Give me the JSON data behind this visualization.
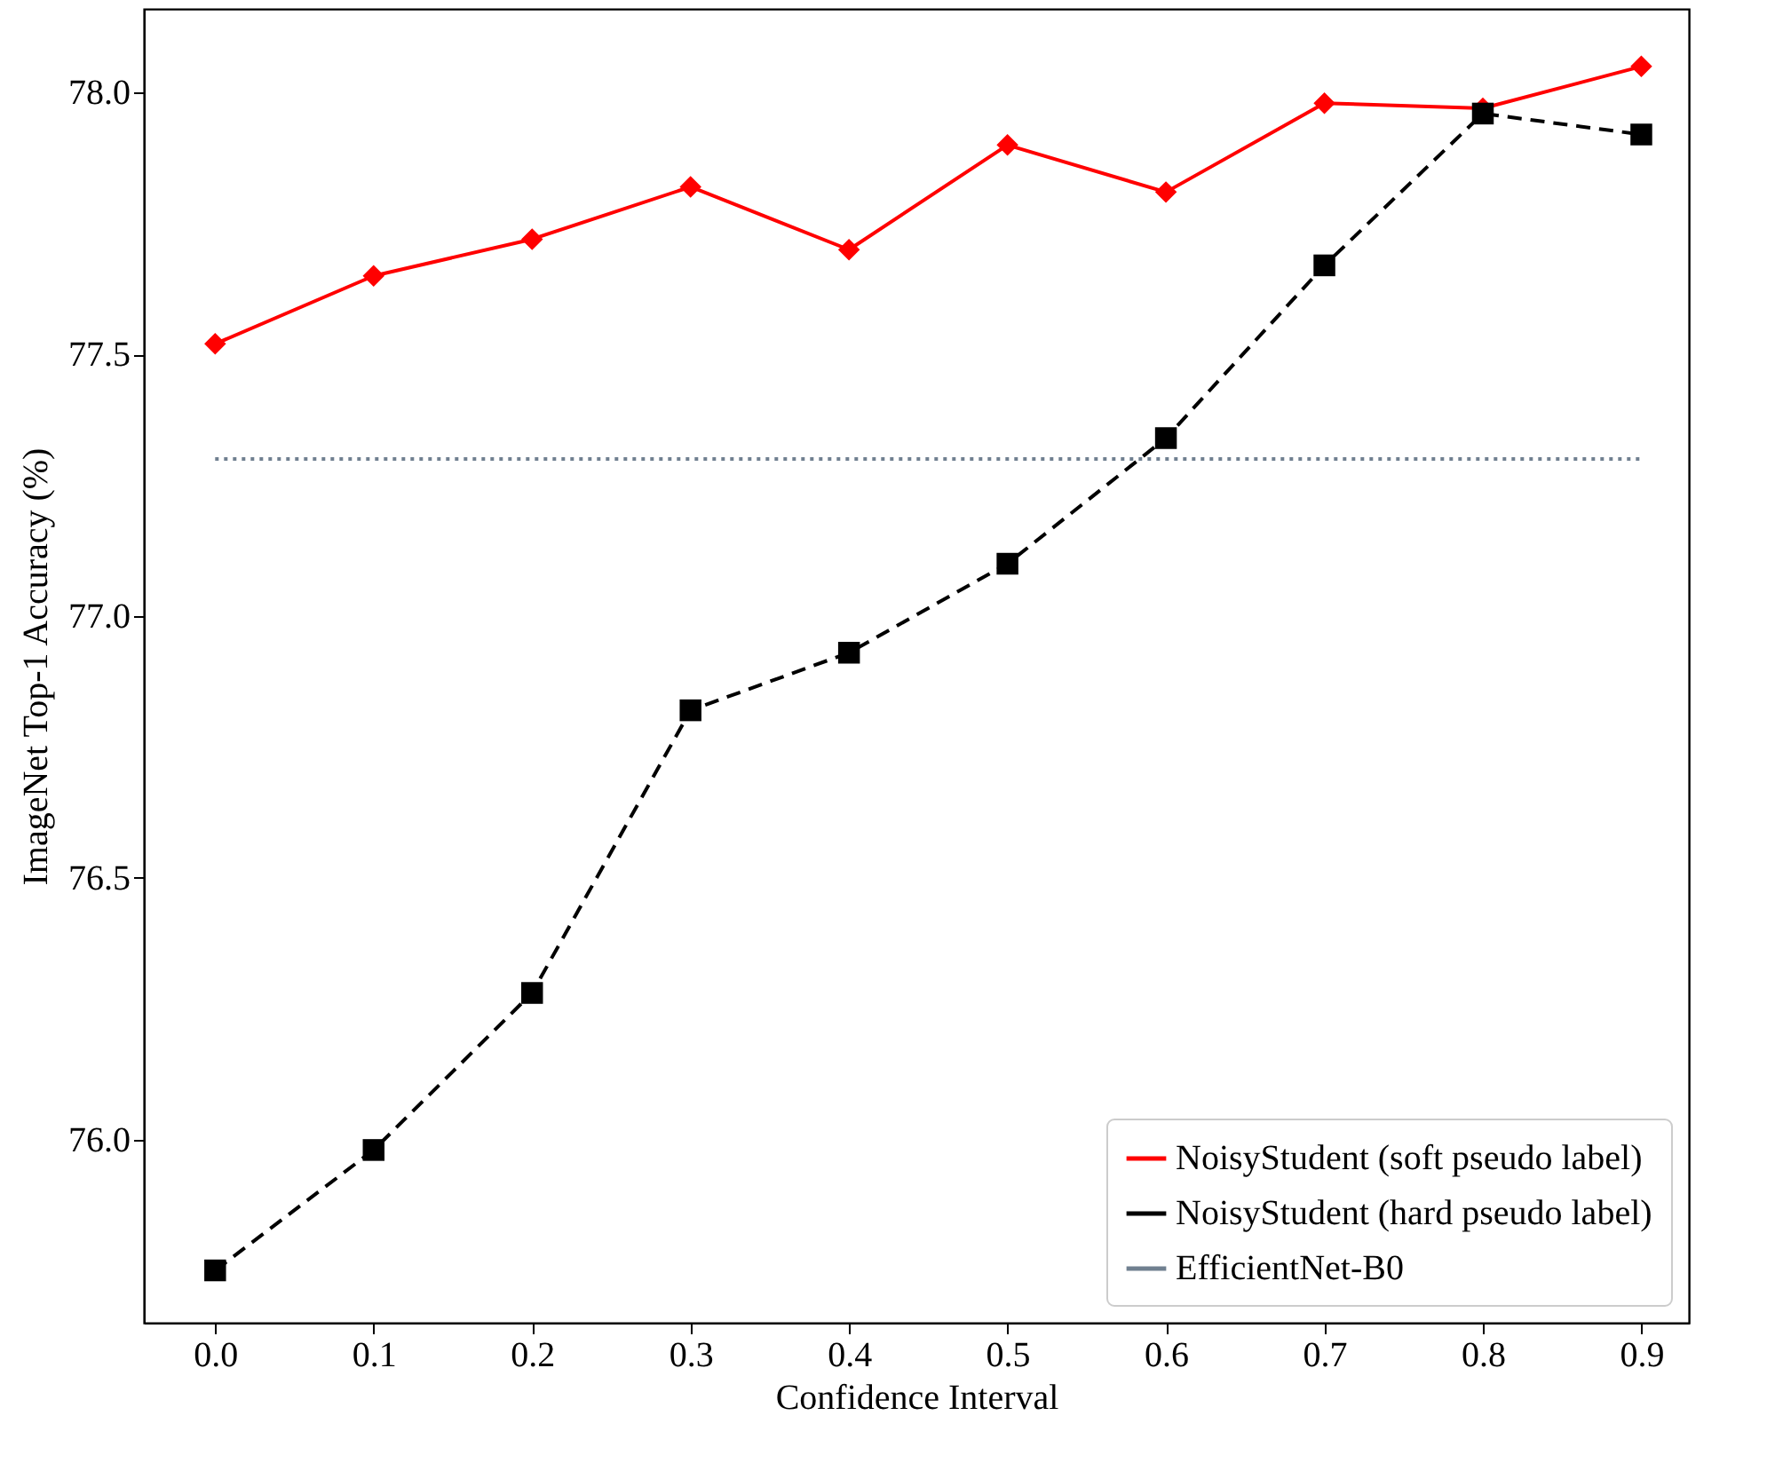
{
  "chart_data": {
    "type": "line",
    "xlabel": "Confidence Interval",
    "ylabel": "ImageNet Top-1 Accuracy (%)",
    "x": [
      0,
      0.1,
      0.2,
      0.3,
      0.4,
      0.5,
      0.6,
      0.7,
      0.8,
      0.9
    ],
    "series": [
      {
        "name": "NoisyStudent (soft pseudo label)",
        "color": "#ff0000",
        "marker": "diamond",
        "line_style": "solid",
        "values": [
          77.52,
          77.65,
          77.72,
          77.82,
          77.7,
          77.9,
          77.81,
          77.98,
          77.97,
          78.05
        ]
      },
      {
        "name": "NoisyStudent (hard pseudo label)",
        "color": "#000000",
        "marker": "square",
        "line_style": "dashed",
        "values": [
          75.75,
          75.98,
          76.28,
          76.82,
          76.93,
          77.1,
          77.34,
          77.67,
          77.96,
          77.92
        ]
      },
      {
        "name": "EfficientNet-B0",
        "color": "#708090",
        "marker": "none",
        "line_style": "dotted",
        "values": [
          77.3,
          77.3,
          77.3,
          77.3,
          77.3,
          77.3,
          77.3,
          77.3,
          77.3,
          77.3
        ]
      }
    ],
    "xlim": [
      -0.045,
      0.93
    ],
    "xticks": [
      {
        "value": 0,
        "label": "0.0"
      },
      0.1,
      0.2,
      0.3,
      0.4,
      0.5,
      0.6,
      0.7,
      0.8,
      0.9
    ],
    "ylim": [
      75.65,
      78.16
    ],
    "yticks": [
      {
        "value": 76,
        "label": "76.0"
      },
      76.5,
      {
        "value": 77,
        "label": "77.0"
      },
      77.5,
      {
        "value": 78,
        "label": "78.0"
      }
    ],
    "grid": false,
    "legend": "bottom right"
  }
}
